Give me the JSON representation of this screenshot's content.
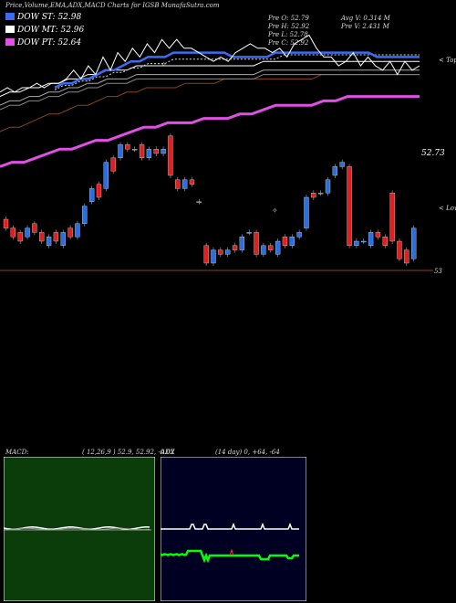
{
  "header": {
    "title": "Price,Volume,EMA,ADX,MACD Charts for IGSB MunafaSutra.com"
  },
  "legend": [
    {
      "label": "DOW ST: 52.98",
      "color": "#3a6cf4"
    },
    {
      "label": "DOW MT: 52.96",
      "color": "#ffffff"
    },
    {
      "label": "DOW PT: 52.64",
      "color": "#e14fe8"
    }
  ],
  "stats": {
    "open": "Pre   O: 52.79",
    "high": "Pre   H: 52.92",
    "low": "Pre   L: 52.78",
    "close": "Pre   C: 52.92",
    "avg_vol": "Avg V: 0.314   M",
    "prev_vol": "Pre    V: 2.431  M"
  },
  "markers": {
    "top": "< Top",
    "low": "< Low",
    "last_price": "52.73",
    "level": "53"
  },
  "macd": {
    "label": "MACD:",
    "params": "( 12,26,9 ) 52.9, 52.92, -0.02"
  },
  "adx": {
    "label": "ADX",
    "params": "(14  day) 0, +64, -64"
  },
  "colors": {
    "ema_short": "#3a6cf4",
    "ema_mid": "#ffffff",
    "ema_long": "#e14fe8",
    "ema_slow": "#8b4513",
    "up_candle": "#2a6fe0",
    "down_candle": "#e02020",
    "macd_bg": "#0a3d0a",
    "adx_bg": "#000022"
  },
  "chart_data": {
    "type": "line",
    "title": "Price,Volume,EMA,ADX,MACD Charts for IGSB MunafaSutra.com",
    "candles": [
      {
        "o": 0.5,
        "c": 0.48
      },
      {
        "o": 0.48,
        "c": 0.46
      },
      {
        "o": 0.47,
        "c": 0.45
      },
      {
        "o": 0.46,
        "c": 0.48
      },
      {
        "o": 0.49,
        "c": 0.47
      },
      {
        "o": 0.47,
        "c": 0.45
      },
      {
        "o": 0.44,
        "c": 0.46
      },
      {
        "o": 0.47,
        "c": 0.45
      },
      {
        "o": 0.44,
        "c": 0.47
      },
      {
        "o": 0.48,
        "c": 0.46
      },
      {
        "o": 0.46,
        "c": 0.49
      },
      {
        "o": 0.49,
        "c": 0.53
      },
      {
        "o": 0.54,
        "c": 0.57
      },
      {
        "o": 0.58,
        "c": 0.55
      },
      {
        "o": 0.57,
        "c": 0.63
      },
      {
        "o": 0.64,
        "c": 0.61
      },
      {
        "o": 0.64,
        "c": 0.67
      },
      {
        "o": 0.67,
        "c": 0.66
      },
      {
        "o": 0.66,
        "c": 0.66
      },
      {
        "o": 0.67,
        "c": 0.64
      },
      {
        "o": 0.64,
        "c": 0.66
      },
      {
        "o": 0.66,
        "c": 0.65
      },
      {
        "o": 0.65,
        "c": 0.66
      },
      {
        "o": 0.69,
        "c": 0.6
      },
      {
        "o": 0.59,
        "c": 0.57
      },
      {
        "o": 0.57,
        "c": 0.59
      },
      {
        "o": 0.59,
        "c": 0.58
      },
      {
        "o": 0.54,
        "c": 0.54
      },
      {
        "o": 0.44,
        "c": 0.4
      },
      {
        "o": 0.4,
        "c": 0.43
      },
      {
        "o": 0.43,
        "c": 0.42
      },
      {
        "o": 0.42,
        "c": 0.43
      },
      {
        "o": 0.44,
        "c": 0.43
      },
      {
        "o": 0.43,
        "c": 0.46
      },
      {
        "o": 0.47,
        "c": 0.47
      },
      {
        "o": 0.47,
        "c": 0.42
      },
      {
        "o": 0.42,
        "c": 0.44
      },
      {
        "o": 0.44,
        "c": 0.43
      },
      {
        "o": 0.42,
        "c": 0.45
      },
      {
        "o": 0.46,
        "c": 0.44
      },
      {
        "o": 0.44,
        "c": 0.46
      },
      {
        "o": 0.46,
        "c": 0.47
      },
      {
        "o": 0.48,
        "c": 0.55
      },
      {
        "o": 0.56,
        "c": 0.55
      },
      {
        "o": 0.56,
        "c": 0.56
      },
      {
        "o": 0.56,
        "c": 0.59
      },
      {
        "o": 0.6,
        "c": 0.62
      },
      {
        "o": 0.62,
        "c": 0.63
      },
      {
        "o": 0.62,
        "c": 0.44
      },
      {
        "o": 0.44,
        "c": 0.45
      },
      {
        "o": 0.45,
        "c": 0.45
      },
      {
        "o": 0.44,
        "c": 0.47
      },
      {
        "o": 0.47,
        "c": 0.46
      },
      {
        "o": 0.46,
        "c": 0.44
      },
      {
        "o": 0.56,
        "c": 0.45
      },
      {
        "o": 0.45,
        "c": 0.41
      },
      {
        "o": 0.43,
        "c": 0.4
      },
      {
        "o": 0.41,
        "c": 0.48
      }
    ],
    "price_line": [
      0.79,
      0.8,
      0.79,
      0.8,
      0.8,
      0.81,
      0.8,
      0.81,
      0.81,
      0.82,
      0.84,
      0.82,
      0.85,
      0.83,
      0.87,
      0.84,
      0.88,
      0.86,
      0.89,
      0.87,
      0.9,
      0.88,
      0.91,
      0.89,
      0.91,
      0.89,
      0.89,
      0.88,
      0.87,
      0.86,
      0.87,
      0.86,
      0.88,
      0.89,
      0.9,
      0.89,
      0.89,
      0.88,
      0.89,
      0.87,
      0.9,
      0.91,
      0.92,
      0.89,
      0.87,
      0.87,
      0.85,
      0.86,
      0.88,
      0.85,
      0.87,
      0.85,
      0.84,
      0.86,
      0.83,
      0.86,
      0.84,
      0.85
    ],
    "ema_short": [
      0.8,
      0.81,
      0.81,
      0.82,
      0.82,
      0.83,
      0.84,
      0.84,
      0.85,
      0.86,
      0.86,
      0.87,
      0.87,
      0.87,
      0.88,
      0.88,
      0.88,
      0.88,
      0.88,
      0.88,
      0.88,
      0.87,
      0.87,
      0.87,
      0.87,
      0.87,
      0.88,
      0.88,
      0.88,
      0.88,
      0.88,
      0.88,
      0.88,
      0.88,
      0.88,
      0.88,
      0.88,
      0.88,
      0.87,
      0.87,
      0.87,
      0.87,
      0.87,
      0.87
    ],
    "ema_mid": [
      0.78,
      0.79,
      0.79,
      0.8,
      0.8,
      0.81,
      0.81,
      0.82,
      0.82,
      0.83,
      0.83,
      0.84,
      0.84,
      0.84,
      0.85,
      0.85,
      0.85,
      0.85,
      0.85,
      0.85,
      0.85,
      0.85,
      0.85,
      0.85,
      0.85,
      0.85,
      0.85,
      0.86,
      0.86,
      0.86,
      0.86,
      0.86,
      0.86,
      0.86,
      0.86,
      0.86,
      0.86,
      0.86,
      0.86,
      0.86,
      0.86,
      0.86,
      0.86,
      0.86
    ],
    "ema_long": [
      0.62,
      0.63,
      0.63,
      0.64,
      0.65,
      0.66,
      0.66,
      0.67,
      0.68,
      0.68,
      0.69,
      0.7,
      0.71,
      0.71,
      0.72,
      0.72,
      0.72,
      0.73,
      0.73,
      0.73,
      0.74,
      0.74,
      0.75,
      0.76,
      0.76,
      0.76,
      0.76,
      0.77,
      0.77,
      0.78,
      0.78,
      0.78,
      0.78,
      0.78,
      0.78,
      0.78
    ],
    "ema_slow": [
      0.7,
      0.71,
      0.71,
      0.72,
      0.73,
      0.74,
      0.74,
      0.75,
      0.76,
      0.76,
      0.77,
      0.78,
      0.78,
      0.79,
      0.79,
      0.8,
      0.8,
      0.8,
      0.8,
      0.81,
      0.81,
      0.81,
      0.81,
      0.82,
      0.82,
      0.82,
      0.82,
      0.82,
      0.82,
      0.82,
      0.82,
      0.82,
      0.82,
      0.83,
      0.83,
      0.83,
      0.83,
      0.83,
      0.83,
      0.83,
      0.83,
      0.83,
      0.83,
      0.83
    ],
    "macd": [
      52.9,
      52.92,
      -0.02
    ],
    "adx": [
      0,
      64,
      -64
    ]
  }
}
